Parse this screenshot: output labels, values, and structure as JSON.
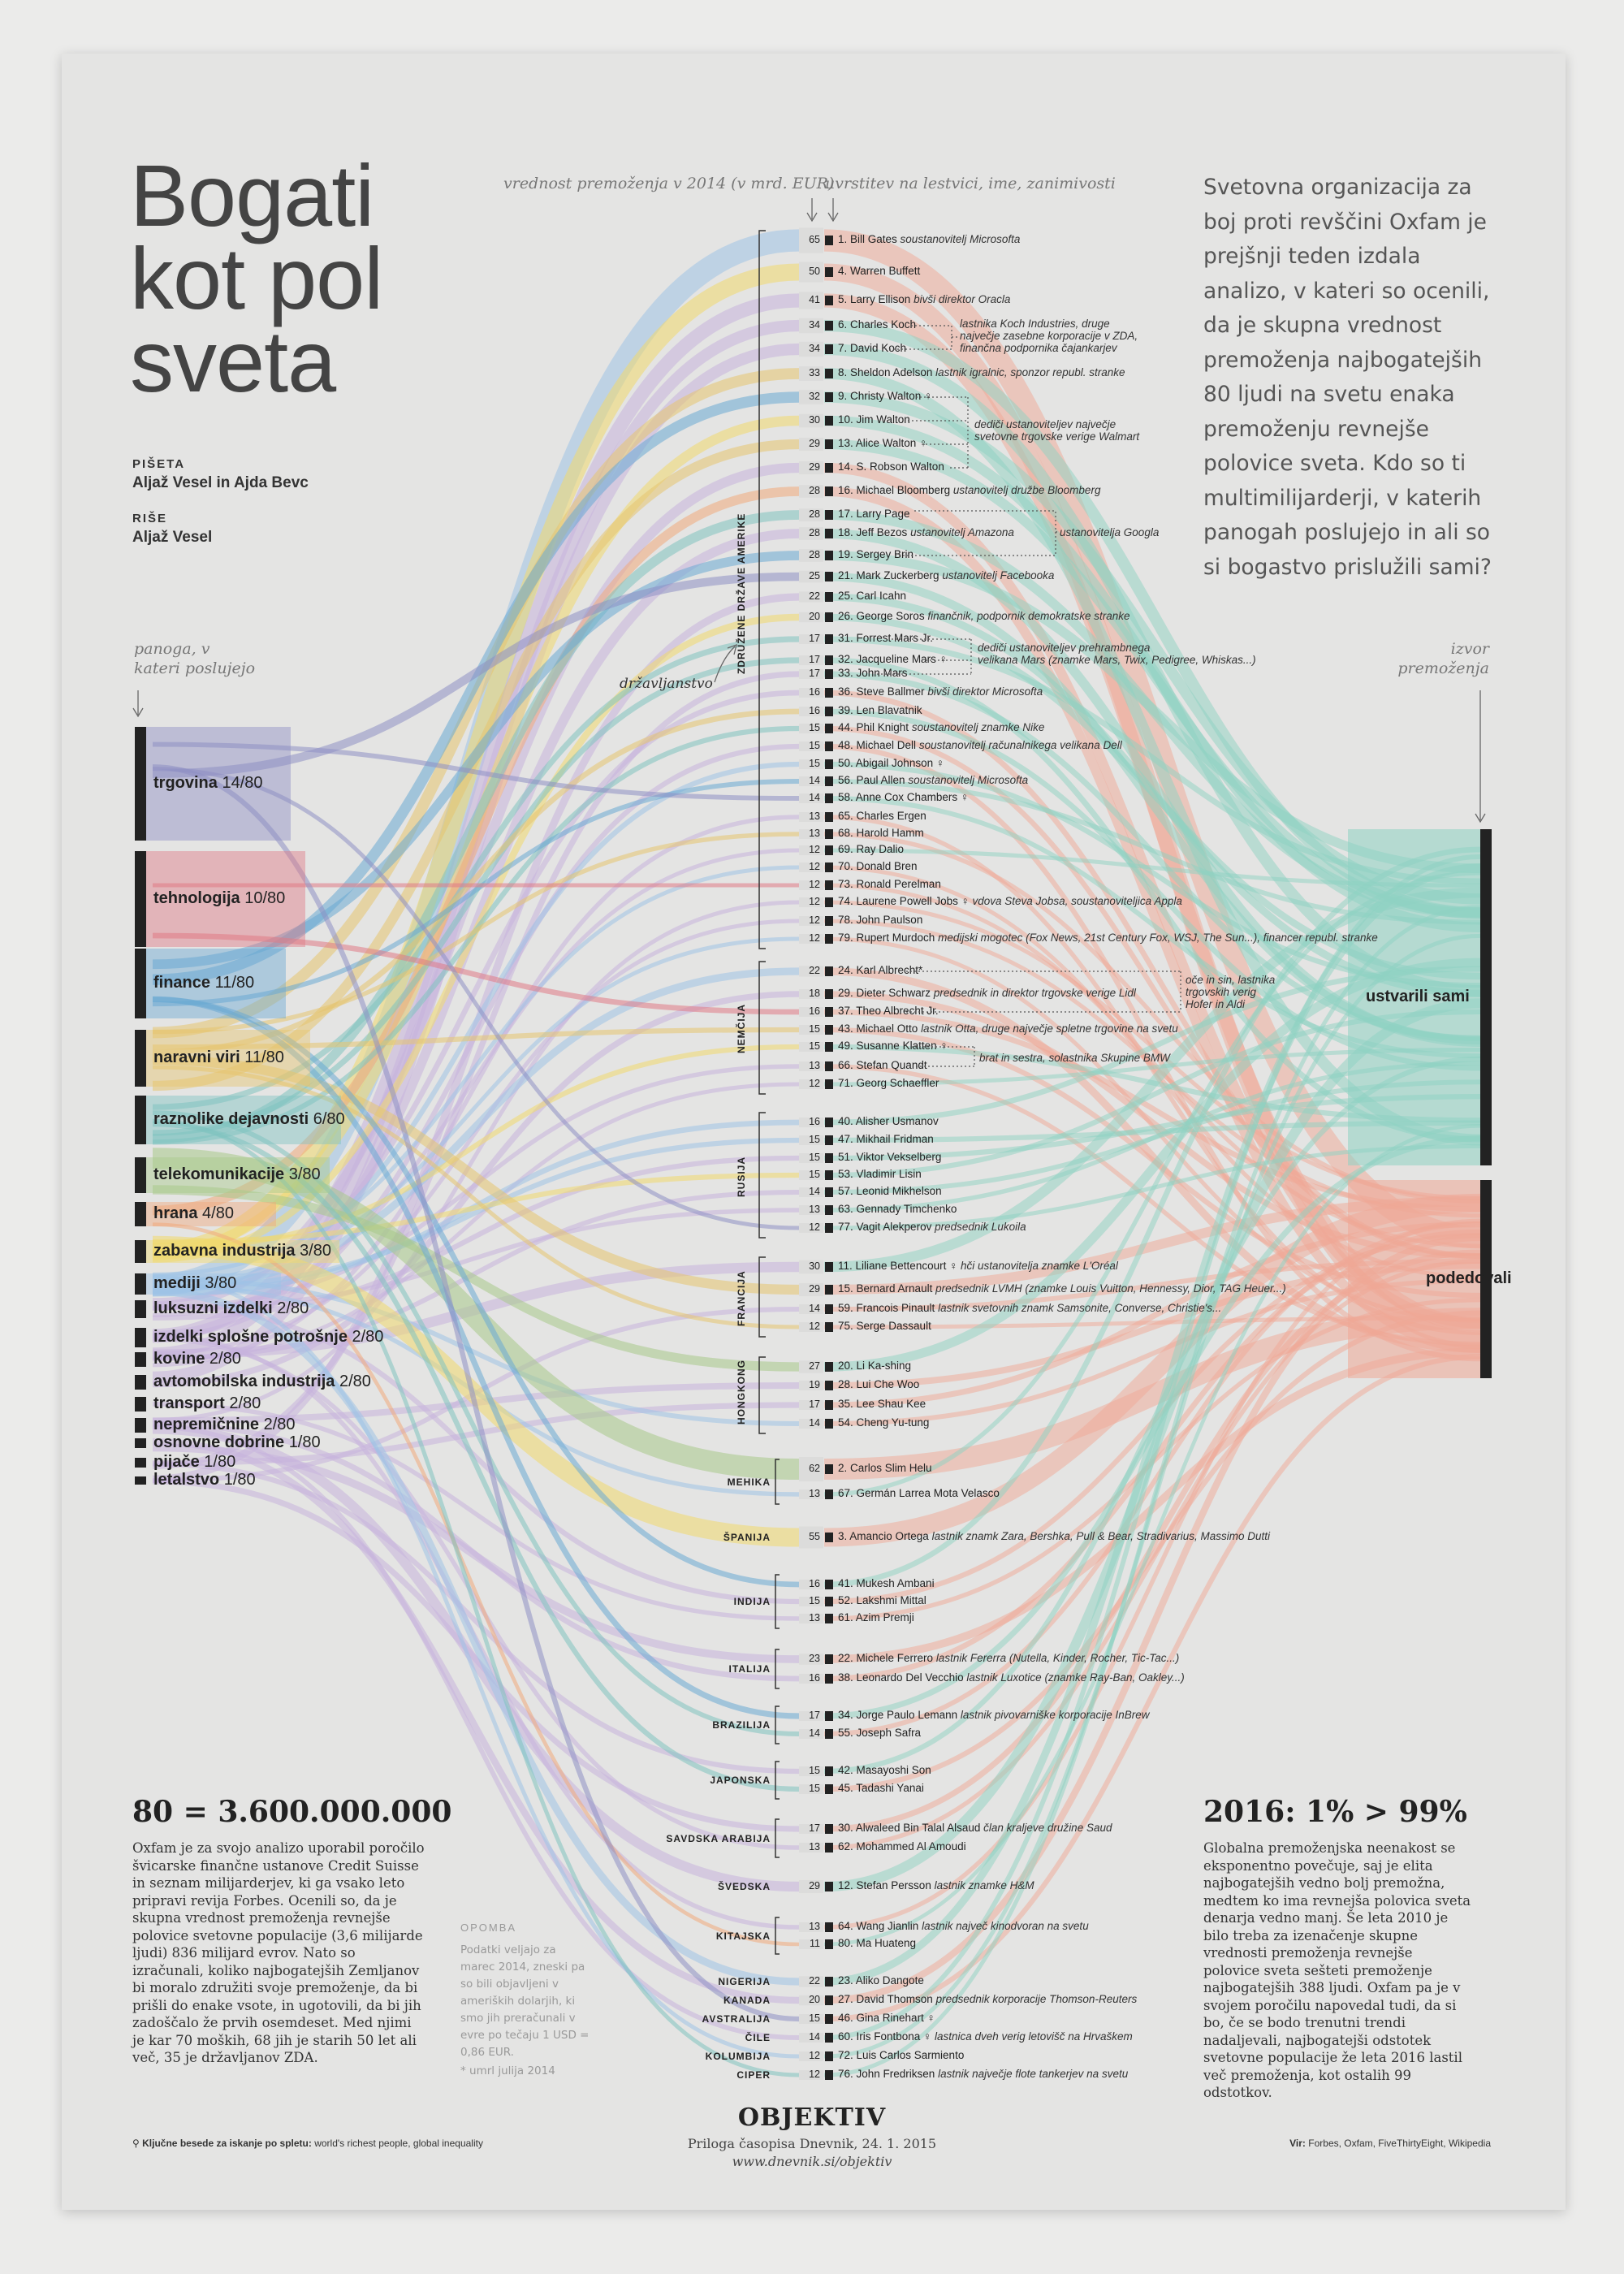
{
  "title": [
    "Bogati",
    "kot pol",
    "sveta"
  ],
  "credits": {
    "writers_label": "PIŠETA",
    "writers": "Aljaž Vesel in Ajda Bevc",
    "drawing_label": "RIŠE",
    "drawing": "Aljaž Vesel"
  },
  "column_heads": {
    "value": "vrednost premoženja v 2014 (v mrd. EUR)",
    "rank": "uvrstitev na lestvici, ime, zanimivosti",
    "industry": [
      "panoga, v",
      "kateri poslujejo"
    ],
    "source": [
      "izvor",
      "premoženja"
    ],
    "citizenship": "državljanstvo"
  },
  "intro": "Svetovna organizacija za boj proti revščini Oxfam je prejšnji teden izdala analizo, v kateri so ocenili, da je skupna vrednost premoženja najbogatejših 80 ljudi na svetu enaka premoženju revnejše polovice sveta. Kdo so ti multimilijarderji, v katerih panogah poslujejo in ali so si bogastvo prislužili sami?",
  "colors": {
    "trgovina": "#8e8fc4",
    "tehnologija": "#e07a86",
    "finance": "#6aa9d3",
    "naravni_viri": "#e6c56f",
    "raznolike": "#7fc3c0",
    "telekomunikacije": "#a8c98a",
    "hrana": "#f0a97c",
    "zabavna": "#f0d96e",
    "mediji": "#9ec3e6",
    "other": "#c6b3dc",
    "source_self": "#8ed1c2",
    "source_inh": "#efa795"
  },
  "industries": [
    {
      "name": "trgovina",
      "count": "14/80"
    },
    {
      "name": "tehnologija",
      "count": "10/80"
    },
    {
      "name": "finance",
      "count": "11/80"
    },
    {
      "name": "naravni viri",
      "count": "11/80"
    },
    {
      "name": "raznolike dejavnosti",
      "count": "6/80"
    },
    {
      "name": "telekomunikacije",
      "count": "3/80"
    },
    {
      "name": "hrana",
      "count": "4/80"
    },
    {
      "name": "zabavna industrija",
      "count": "3/80"
    },
    {
      "name": "mediji",
      "count": "3/80"
    },
    {
      "name": "luksuzni izdelki",
      "count": "2/80"
    },
    {
      "name": "izdelki splošne potrošnje",
      "count": "2/80"
    },
    {
      "name": "kovine",
      "count": "2/80"
    },
    {
      "name": "avtomobilska industrija",
      "count": "2/80"
    },
    {
      "name": "transport",
      "count": "2/80"
    },
    {
      "name": "nepremičnine",
      "count": "2/80"
    },
    {
      "name": "osnovne dobrine",
      "count": "1/80"
    },
    {
      "name": "pijače",
      "count": "1/80"
    },
    {
      "name": "letalstvo",
      "count": "1/80"
    }
  ],
  "sources": [
    {
      "name": "ustvarili sami"
    },
    {
      "name": "podedovali"
    }
  ],
  "countries": [
    {
      "name": "ZDRUŽENE DRŽAVE AMERIKE",
      "people": [
        {
          "v": "65",
          "n": "1. Bill Gates",
          "d": "soustanovitelj Microsofta"
        },
        {
          "v": "50",
          "n": "4. Warren Buffett",
          "d": ""
        },
        {
          "v": "41",
          "n": "5. Larry Ellison",
          "d": "bivši direktor Oracla"
        },
        {
          "v": "34",
          "n": "6. Charles Koch",
          "d": ""
        },
        {
          "v": "34",
          "n": "7. David Koch",
          "d": ""
        },
        {
          "v": "33",
          "n": "8. Sheldon Adelson",
          "d": "lastnik igralnic, sponzor republ. stranke"
        },
        {
          "v": "32",
          "n": "9. Christy Walton ♀",
          "d": ""
        },
        {
          "v": "30",
          "n": "10. Jim Walton",
          "d": ""
        },
        {
          "v": "29",
          "n": "13. Alice Walton ♀",
          "d": ""
        },
        {
          "v": "29",
          "n": "14. S. Robson Walton",
          "d": ""
        },
        {
          "v": "28",
          "n": "16. Michael Bloomberg",
          "d": "ustanovitelj družbe Bloomberg"
        },
        {
          "v": "28",
          "n": "17. Larry Page",
          "d": ""
        },
        {
          "v": "28",
          "n": "18. Jeff Bezos",
          "d": "ustanovitelj Amazona"
        },
        {
          "v": "28",
          "n": "19. Sergey Brin",
          "d": ""
        },
        {
          "v": "25",
          "n": "21. Mark Zuckerberg",
          "d": "ustanovitelj Facebooka"
        },
        {
          "v": "22",
          "n": "25. Carl Icahn",
          "d": ""
        },
        {
          "v": "20",
          "n": "26. George Soros",
          "d": "finančnik, podpornik demokratske stranke"
        },
        {
          "v": "17",
          "n": "31. Forrest Mars Jr.",
          "d": ""
        },
        {
          "v": "17",
          "n": "32. Jacqueline Mars ♀",
          "d": ""
        },
        {
          "v": "17",
          "n": "33. John Mars",
          "d": ""
        },
        {
          "v": "16",
          "n": "36. Steve Ballmer",
          "d": "bivši direktor Microsofta"
        },
        {
          "v": "16",
          "n": "39. Len Blavatnik",
          "d": ""
        },
        {
          "v": "15",
          "n": "44. Phil Knight",
          "d": "soustanovitelj znamke Nike"
        },
        {
          "v": "15",
          "n": "48. Michael Dell",
          "d": "soustanovitelj računalnikega velikana Dell"
        },
        {
          "v": "15",
          "n": "50. Abigail Johnson ♀",
          "d": ""
        },
        {
          "v": "14",
          "n": "56. Paul Allen",
          "d": "soustanovitelj Microsofta"
        },
        {
          "v": "14",
          "n": "58. Anne Cox Chambers ♀",
          "d": ""
        },
        {
          "v": "13",
          "n": "65. Charles Ergen",
          "d": ""
        },
        {
          "v": "13",
          "n": "68. Harold Hamm",
          "d": ""
        },
        {
          "v": "12",
          "n": "69. Ray Dalio",
          "d": ""
        },
        {
          "v": "12",
          "n": "70. Donald Bren",
          "d": ""
        },
        {
          "v": "12",
          "n": "73. Ronald Perelman",
          "d": ""
        },
        {
          "v": "12",
          "n": "74. Laurene Powell Jobs ♀",
          "d": "vdova Steva Jobsa, soustanoviteljica Appla"
        },
        {
          "v": "12",
          "n": "78. John Paulson",
          "d": ""
        },
        {
          "v": "12",
          "n": "79. Rupert Murdoch",
          "d": "medijski mogotec (Fox News, 21st Century Fox, WSJ, The Sun...), financer republ. stranke"
        }
      ]
    },
    {
      "name": "NEMČIJA",
      "people": [
        {
          "v": "22",
          "n": "24. Karl Albrecht*",
          "d": ""
        },
        {
          "v": "18",
          "n": "29. Dieter Schwarz",
          "d": "predsednik in direktor trgovske verige Lidl"
        },
        {
          "v": "16",
          "n": "37. Theo Albrecht Jr.",
          "d": ""
        },
        {
          "v": "15",
          "n": "43. Michael Otto",
          "d": "lastnik Otta, druge največje spletne trgovine na svetu"
        },
        {
          "v": "15",
          "n": "49. Susanne Klatten ♀",
          "d": ""
        },
        {
          "v": "13",
          "n": "66. Stefan Quandt",
          "d": ""
        },
        {
          "v": "12",
          "n": "71. Georg Schaeffler",
          "d": ""
        }
      ]
    },
    {
      "name": "RUSIJA",
      "people": [
        {
          "v": "16",
          "n": "40. Alisher Usmanov",
          "d": ""
        },
        {
          "v": "15",
          "n": "47. Mikhail Fridman",
          "d": ""
        },
        {
          "v": "15",
          "n": "51. Viktor Vekselberg",
          "d": ""
        },
        {
          "v": "15",
          "n": "53. Vladimir Lisin",
          "d": ""
        },
        {
          "v": "14",
          "n": "57. Leonid Mikhelson",
          "d": ""
        },
        {
          "v": "13",
          "n": "63. Gennady Timchenko",
          "d": ""
        },
        {
          "v": "12",
          "n": "77. Vagit Alekperov",
          "d": "predsednik Lukoila"
        }
      ]
    },
    {
      "name": "FRANCIJA",
      "people": [
        {
          "v": "30",
          "n": "11. Liliane Bettencourt ♀",
          "d": "hči ustanovitelja znamke L'Oréal"
        },
        {
          "v": "29",
          "n": "15. Bernard Arnault",
          "d": "predsednik LVMH (znamke Louis Vuitton, Hennessy, Dior, TAG Heuer...)"
        },
        {
          "v": "14",
          "n": "59. Francois Pinault",
          "d": "lastnik svetovnih znamk Samsonite, Converse, Christie's..."
        },
        {
          "v": "12",
          "n": "75. Serge Dassault",
          "d": ""
        }
      ]
    },
    {
      "name": "HONGKONG",
      "people": [
        {
          "v": "27",
          "n": "20. Li Ka-shing",
          "d": ""
        },
        {
          "v": "19",
          "n": "28. Lui Che Woo",
          "d": ""
        },
        {
          "v": "17",
          "n": "35. Lee Shau Kee",
          "d": ""
        },
        {
          "v": "14",
          "n": "54. Cheng Yu-tung",
          "d": ""
        }
      ]
    },
    {
      "name": "MEHIKA",
      "people": [
        {
          "v": "62",
          "n": "2. Carlos Slim Helu",
          "d": ""
        },
        {
          "v": "13",
          "n": "67. Germán Larrea Mota Velasco",
          "d": ""
        }
      ]
    },
    {
      "name": "ŠPANIJA",
      "people": [
        {
          "v": "55",
          "n": "3. Amancio Ortega",
          "d": "lastnik znamk Zara, Bershka, Pull & Bear, Stradivarius, Massimo Dutti"
        }
      ]
    },
    {
      "name": "INDIJA",
      "people": [
        {
          "v": "16",
          "n": "41. Mukesh Ambani",
          "d": ""
        },
        {
          "v": "15",
          "n": "52. Lakshmi Mittal",
          "d": ""
        },
        {
          "v": "13",
          "n": "61. Azim Premji",
          "d": ""
        }
      ]
    },
    {
      "name": "ITALIJA",
      "people": [
        {
          "v": "23",
          "n": "22. Michele Ferrero",
          "d": "lastnik Fererra (Nutella, Kinder, Rocher, Tic-Tac...)"
        },
        {
          "v": "16",
          "n": "38. Leonardo Del Vecchio",
          "d": "lastnik Luxotice (znamke Ray-Ban, Oakley...)"
        }
      ]
    },
    {
      "name": "BRAZILIJA",
      "people": [
        {
          "v": "17",
          "n": "34. Jorge Paulo Lemann",
          "d": "lastnik pivovarniške korporacije InBrew"
        },
        {
          "v": "14",
          "n": "55. Joseph Safra",
          "d": ""
        }
      ]
    },
    {
      "name": "JAPONSKA",
      "people": [
        {
          "v": "15",
          "n": "42. Masayoshi Son",
          "d": ""
        },
        {
          "v": "15",
          "n": "45. Tadashi Yanai",
          "d": ""
        }
      ]
    },
    {
      "name": "SAVDSKA ARABIJA",
      "people": [
        {
          "v": "17",
          "n": "30. Alwaleed Bin Talal Alsaud",
          "d": "član kraljeve družine Saud"
        },
        {
          "v": "13",
          "n": "62. Mohammed Al Amoudi",
          "d": ""
        }
      ]
    },
    {
      "name": "ŠVEDSKA",
      "people": [
        {
          "v": "29",
          "n": "12. Stefan Persson",
          "d": "lastnik znamke H&M"
        }
      ]
    },
    {
      "name": "KITAJSKA",
      "people": [
        {
          "v": "13",
          "n": "64. Wang Jianlin",
          "d": "lastnik največ kinodvoran na svetu"
        },
        {
          "v": "11",
          "n": "80. Ma Huateng",
          "d": ""
        }
      ]
    },
    {
      "name": "NIGERIJA",
      "people": [
        {
          "v": "22",
          "n": "23. Aliko Dangote",
          "d": ""
        }
      ]
    },
    {
      "name": "KANADA",
      "people": [
        {
          "v": "20",
          "n": "27. David Thomson",
          "d": "predsednik korporacije Thomson-Reuters"
        }
      ]
    },
    {
      "name": "AVSTRALIJA",
      "people": [
        {
          "v": "15",
          "n": "46. Gina Rinehart ♀",
          "d": ""
        }
      ]
    },
    {
      "name": "ČILE",
      "people": [
        {
          "v": "14",
          "n": "60. Iris Fontbona ♀",
          "d": "lastnica dveh verig letovišč na Hrvaškem"
        }
      ]
    },
    {
      "name": "KOLUMBIJA",
      "people": [
        {
          "v": "12",
          "n": "72. Luis Carlos Sarmiento",
          "d": ""
        }
      ]
    },
    {
      "name": "CIPER",
      "people": [
        {
          "v": "12",
          "n": "76. John Fredriksen",
          "d": "lastnik največje flote tankerjev na svetu"
        }
      ]
    }
  ],
  "annotations": {
    "koch": [
      "lastnika Koch Industries, druge",
      "največje zasebne korporacije v ZDA,",
      "finančna podpornika čajankarjev"
    ],
    "walton": [
      "dediči ustanoviteljev največje",
      "svetovne trgovske verige Walmart"
    ],
    "google": "ustanovitelja Googla",
    "mars": [
      "dediči ustanoviteljev prehrambnega",
      "velikana Mars (znamke Mars, Twix, Pedigree, Whiskas...)"
    ],
    "aldi": [
      "oče in sin, lastnika",
      "trgovskih verig",
      "Hofer in Aldi"
    ],
    "bmw": "brat in sestra, solastnika Skupine BMW"
  },
  "bottom_left": {
    "heading": "80 = 3.600.000.000",
    "text": "Oxfam je za svojo analizo uporabil poročilo švicarske finančne ustanove Credit Suisse in seznam milijarderjev, ki ga vsako leto pripravi revija Forbes. Ocenili so, da je skupna vrednost premoženja revnejše polovice svetovne populacije (3,6 milijarde ljudi) 836 milijard evrov. Nato so izračunali, koliko najbogatejših Zemljanov bi moralo združiti svoje premoženje, da bi prišli do enake vsote, in ugotovili, da bi jih zadoščalo že prvih osemdeset. Med njimi je kar 70 moških, 68 jih je starih 50 let ali več, 35 je državljanov ZDA."
  },
  "note": {
    "heading": "OPOMBA",
    "text": "Podatki veljajo za marec 2014, zneski pa so bili objavljeni v ameriških dolarjih, ki smo jih preračunali v evre po tečaju 1 USD = 0,86 EUR.",
    "footnote": "* umrl julija 2014"
  },
  "bottom_right": {
    "heading": "2016: 1% > 99%",
    "text": "Globalna premoženjska neenakost se eksponentno povečuje, saj je elita najbogatejših vedno bolj premožna, medtem ko ima revnejša polovica sveta denarja vedno manj. Še leta 2010 je bilo treba za izenačenje skupne vrednosti premoženja revnejše polovice sveta sešteti premoženje najbogatejših 388 ljudi. Oxfam pa je v svojem poročilu napovedal tudi, da si bo, če se bodo trenutni trendi nadaljevali, najbogatejši odstotek svetovne populacije že leta 2016 lastil več premoženja, kot ostalih 99 odstotkov."
  },
  "footer": {
    "keywords_label": "Ključne besede za iskanje po spletu:",
    "keywords": "world's richest people, global inequality",
    "brand": "OBJEKTIV",
    "supplement": "Priloga časopisa Dnevnik, 24. 1. 2015",
    "url": "www.dnevnik.si/objektiv",
    "sources_label": "Vir:",
    "sources": "Forbes, Oxfam, FiveThirtyEight, Wikipedia"
  }
}
